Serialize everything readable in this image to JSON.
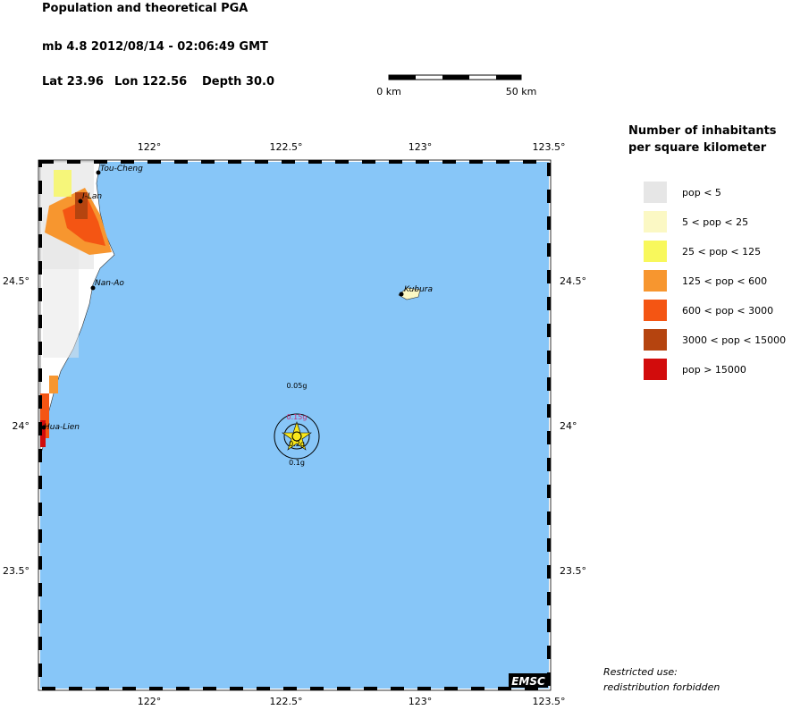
{
  "header": {
    "title": "Population and theoretical PGA",
    "event": "mb 4.8  2012/08/14 - 02:06:49 GMT",
    "lat": "Lat 23.96",
    "lon": "Lon 122.56",
    "depth": "Depth  30.0"
  },
  "scale_bar": {
    "labels": [
      "0 km",
      "50 km"
    ]
  },
  "map": {
    "x_ticks": [
      "122°",
      "122.5°",
      "123°",
      "123.5°"
    ],
    "y_ticks": [
      "24.5°",
      "24°",
      "23.5°"
    ],
    "places": [
      "Tou-Cheng",
      "I-Lan",
      "Nan-Ao",
      "Hua-Lien",
      "Kubura"
    ],
    "pga_labels": [
      "0.05g",
      "0.15g",
      "0.2g",
      "0.1g"
    ],
    "credit": "EMSC"
  },
  "legend": {
    "title": [
      "Number of inhabitants",
      "per square kilometer"
    ],
    "items": [
      {
        "label": "pop < 5",
        "color": "#e6e6e6"
      },
      {
        "label": "5 < pop < 25",
        "color": "#fbf8c4"
      },
      {
        "label": "25 < pop < 125",
        "color": "#f8f85c"
      },
      {
        "label": "125 < pop < 600",
        "color": "#f7962f"
      },
      {
        "label": "600 < pop < 3000",
        "color": "#f45513"
      },
      {
        "label": "3000 < pop < 15000",
        "color": "#b5440f"
      },
      {
        "label": "pop > 15000",
        "color": "#d20c0c"
      }
    ]
  },
  "note": [
    "Restricted use:",
    "redistribution forbidden"
  ]
}
